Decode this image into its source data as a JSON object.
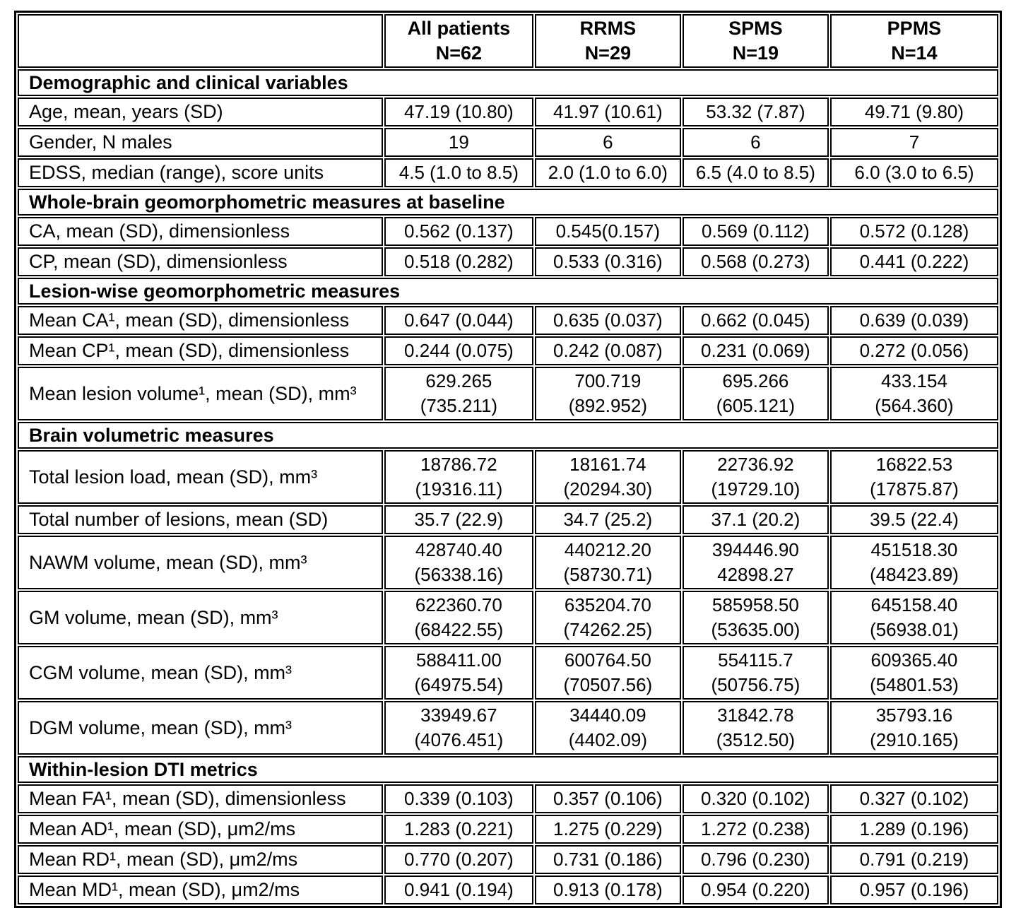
{
  "table": {
    "columns": [
      "All patients\nN=62",
      "RRMS\nN=29",
      "SPMS\nN=19",
      "PPMS\nN=14"
    ],
    "rows": [
      {
        "type": "section",
        "label": "Demographic and clinical variables"
      },
      {
        "type": "data",
        "label": "Age, mean, years (SD)",
        "values": [
          "47.19 (10.80)",
          "41.97 (10.61)",
          "53.32 (7.87)",
          "49.71 (9.80)"
        ]
      },
      {
        "type": "data",
        "label": "Gender, N males",
        "values": [
          "19",
          "6",
          "6",
          "7"
        ]
      },
      {
        "type": "data",
        "label": "EDSS, median (range), score units",
        "values": [
          "4.5 (1.0 to 8.5)",
          "2.0 (1.0 to 6.0)",
          "6.5 (4.0 to 8.5)",
          "6.0 (3.0 to 6.5)"
        ]
      },
      {
        "type": "section",
        "label": "Whole-brain geomorphometric measures at baseline"
      },
      {
        "type": "data",
        "label": "CA, mean (SD), dimensionless",
        "values": [
          "0.562 (0.137)",
          "0.545(0.157)",
          "0.569 (0.112)",
          "0.572 (0.128)"
        ]
      },
      {
        "type": "data",
        "label": "CP, mean (SD), dimensionless",
        "values": [
          "0.518 (0.282)",
          "0.533 (0.316)",
          "0.568 (0.273)",
          "0.441 (0.222)"
        ]
      },
      {
        "type": "section",
        "label": "Lesion-wise geomorphometric measures"
      },
      {
        "type": "data",
        "label": "Mean CA¹, mean (SD), dimensionless",
        "values": [
          "0.647 (0.044)",
          "0.635 (0.037)",
          "0.662 (0.045)",
          "0.639 (0.039)"
        ]
      },
      {
        "type": "data",
        "label": "Mean CP¹, mean (SD), dimensionless",
        "values": [
          "0.244 (0.075)",
          "0.242 (0.087)",
          "0.231 (0.069)",
          "0.272 (0.056)"
        ]
      },
      {
        "type": "data",
        "label": "Mean lesion volume¹, mean (SD), mm³",
        "values": [
          "629.265\n(735.211)",
          "700.719\n(892.952)",
          "695.266\n(605.121)",
          "433.154\n(564.360)"
        ]
      },
      {
        "type": "section",
        "label": "Brain volumetric measures"
      },
      {
        "type": "data",
        "label": "Total lesion load, mean (SD), mm³",
        "values": [
          "18786.72\n(19316.11)",
          "18161.74\n(20294.30)",
          "22736.92\n(19729.10)",
          "16822.53\n(17875.87)"
        ]
      },
      {
        "type": "data",
        "label": "Total number of lesions, mean (SD)",
        "values": [
          "35.7 (22.9)",
          "34.7 (25.2)",
          "37.1 (20.2)",
          "39.5 (22.4)"
        ]
      },
      {
        "type": "data",
        "label": "NAWM volume, mean (SD), mm³",
        "values": [
          "428740.40\n(56338.16)",
          "440212.20\n(58730.71)",
          "394446.90\n42898.27",
          "451518.30\n(48423.89)"
        ]
      },
      {
        "type": "data",
        "label": "GM volume, mean (SD), mm³",
        "values": [
          "622360.70\n(68422.55)",
          "635204.70\n(74262.25)",
          "585958.50\n(53635.00)",
          "645158.40\n(56938.01)"
        ]
      },
      {
        "type": "data",
        "label": "CGM volume, mean (SD), mm³",
        "values": [
          "588411.00\n(64975.54)",
          "600764.50\n(70507.56)",
          "554115.7\n(50756.75)",
          "609365.40\n(54801.53)"
        ]
      },
      {
        "type": "data",
        "label": "DGM volume, mean (SD), mm³",
        "values": [
          "33949.67\n(4076.451)",
          "34440.09\n(4402.09)",
          "31842.78\n(3512.50)",
          "35793.16\n(2910.165)"
        ]
      },
      {
        "type": "section",
        "label": "Within-lesion DTI metrics"
      },
      {
        "type": "data",
        "label": "Mean FA¹, mean (SD), dimensionless",
        "values": [
          "0.339 (0.103)",
          "0.357 (0.106)",
          "0.320 (0.102)",
          "0.327 (0.102)"
        ]
      },
      {
        "type": "data",
        "label": "Mean AD¹, mean (SD), μm2/ms",
        "values": [
          "1.283 (0.221)",
          "1.275 (0.229)",
          "1.272 (0.238)",
          "1.289 (0.196)"
        ]
      },
      {
        "type": "data",
        "label": "Mean RD¹, mean (SD), μm2/ms",
        "values": [
          "0.770 (0.207)",
          "0.731 (0.186)",
          "0.796 (0.230)",
          "0.791 (0.219)"
        ]
      },
      {
        "type": "data",
        "label": "Mean MD¹, mean (SD), μm2/ms",
        "values": [
          "0.941 (0.194)",
          "0.913 (0.178)",
          "0.954 (0.220)",
          "0.957 (0.196)"
        ]
      }
    ]
  }
}
